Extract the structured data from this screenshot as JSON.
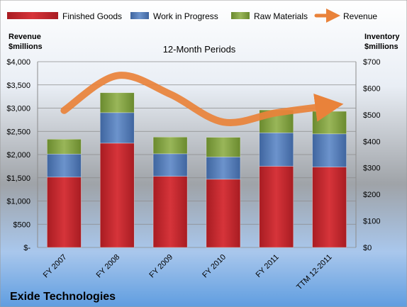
{
  "chart_data": {
    "type": "bar",
    "stacked": true,
    "title": "12-Month Periods",
    "company": "Exide Technologies",
    "categories": [
      "FY 2007",
      "FY 2008",
      "FY 2009",
      "FY 2010",
      "FY 2011",
      "TTM 12-2011"
    ],
    "y_left": {
      "label_line1": "Revenue",
      "label_line2": "$millions",
      "range": [
        0,
        4000
      ],
      "ticks": [
        "$-",
        "$500",
        "$1,000",
        "$1,500",
        "$2,000",
        "$2,500",
        "$3,000",
        "$3,500",
        "$4,000"
      ]
    },
    "y_right": {
      "label_line1": "Inventory",
      "label_line2": "$millions",
      "range": [
        0,
        700
      ],
      "ticks": [
        "$0",
        "$100",
        "$200",
        "$300",
        "$400",
        "$500",
        "$600",
        "$700"
      ]
    },
    "series": [
      {
        "name": "Finished Goods",
        "axis": "right",
        "color": "#c0272d",
        "values": [
          265,
          393,
          268,
          257,
          306,
          303
        ]
      },
      {
        "name": "Work in Progress",
        "axis": "right",
        "color": "#4f78b5",
        "values": [
          87,
          115,
          85,
          84,
          126,
          125
        ]
      },
      {
        "name": "Raw Materials",
        "axis": "right",
        "color": "#7a9a3a",
        "values": [
          56,
          75,
          63,
          74,
          86,
          85
        ]
      },
      {
        "name": "Revenue",
        "axis": "left",
        "type": "line",
        "color": "#e9823a",
        "values": [
          2950,
          3700,
          3300,
          2700,
          2900,
          3050
        ]
      }
    ],
    "legend_position": "top",
    "grid": true
  }
}
